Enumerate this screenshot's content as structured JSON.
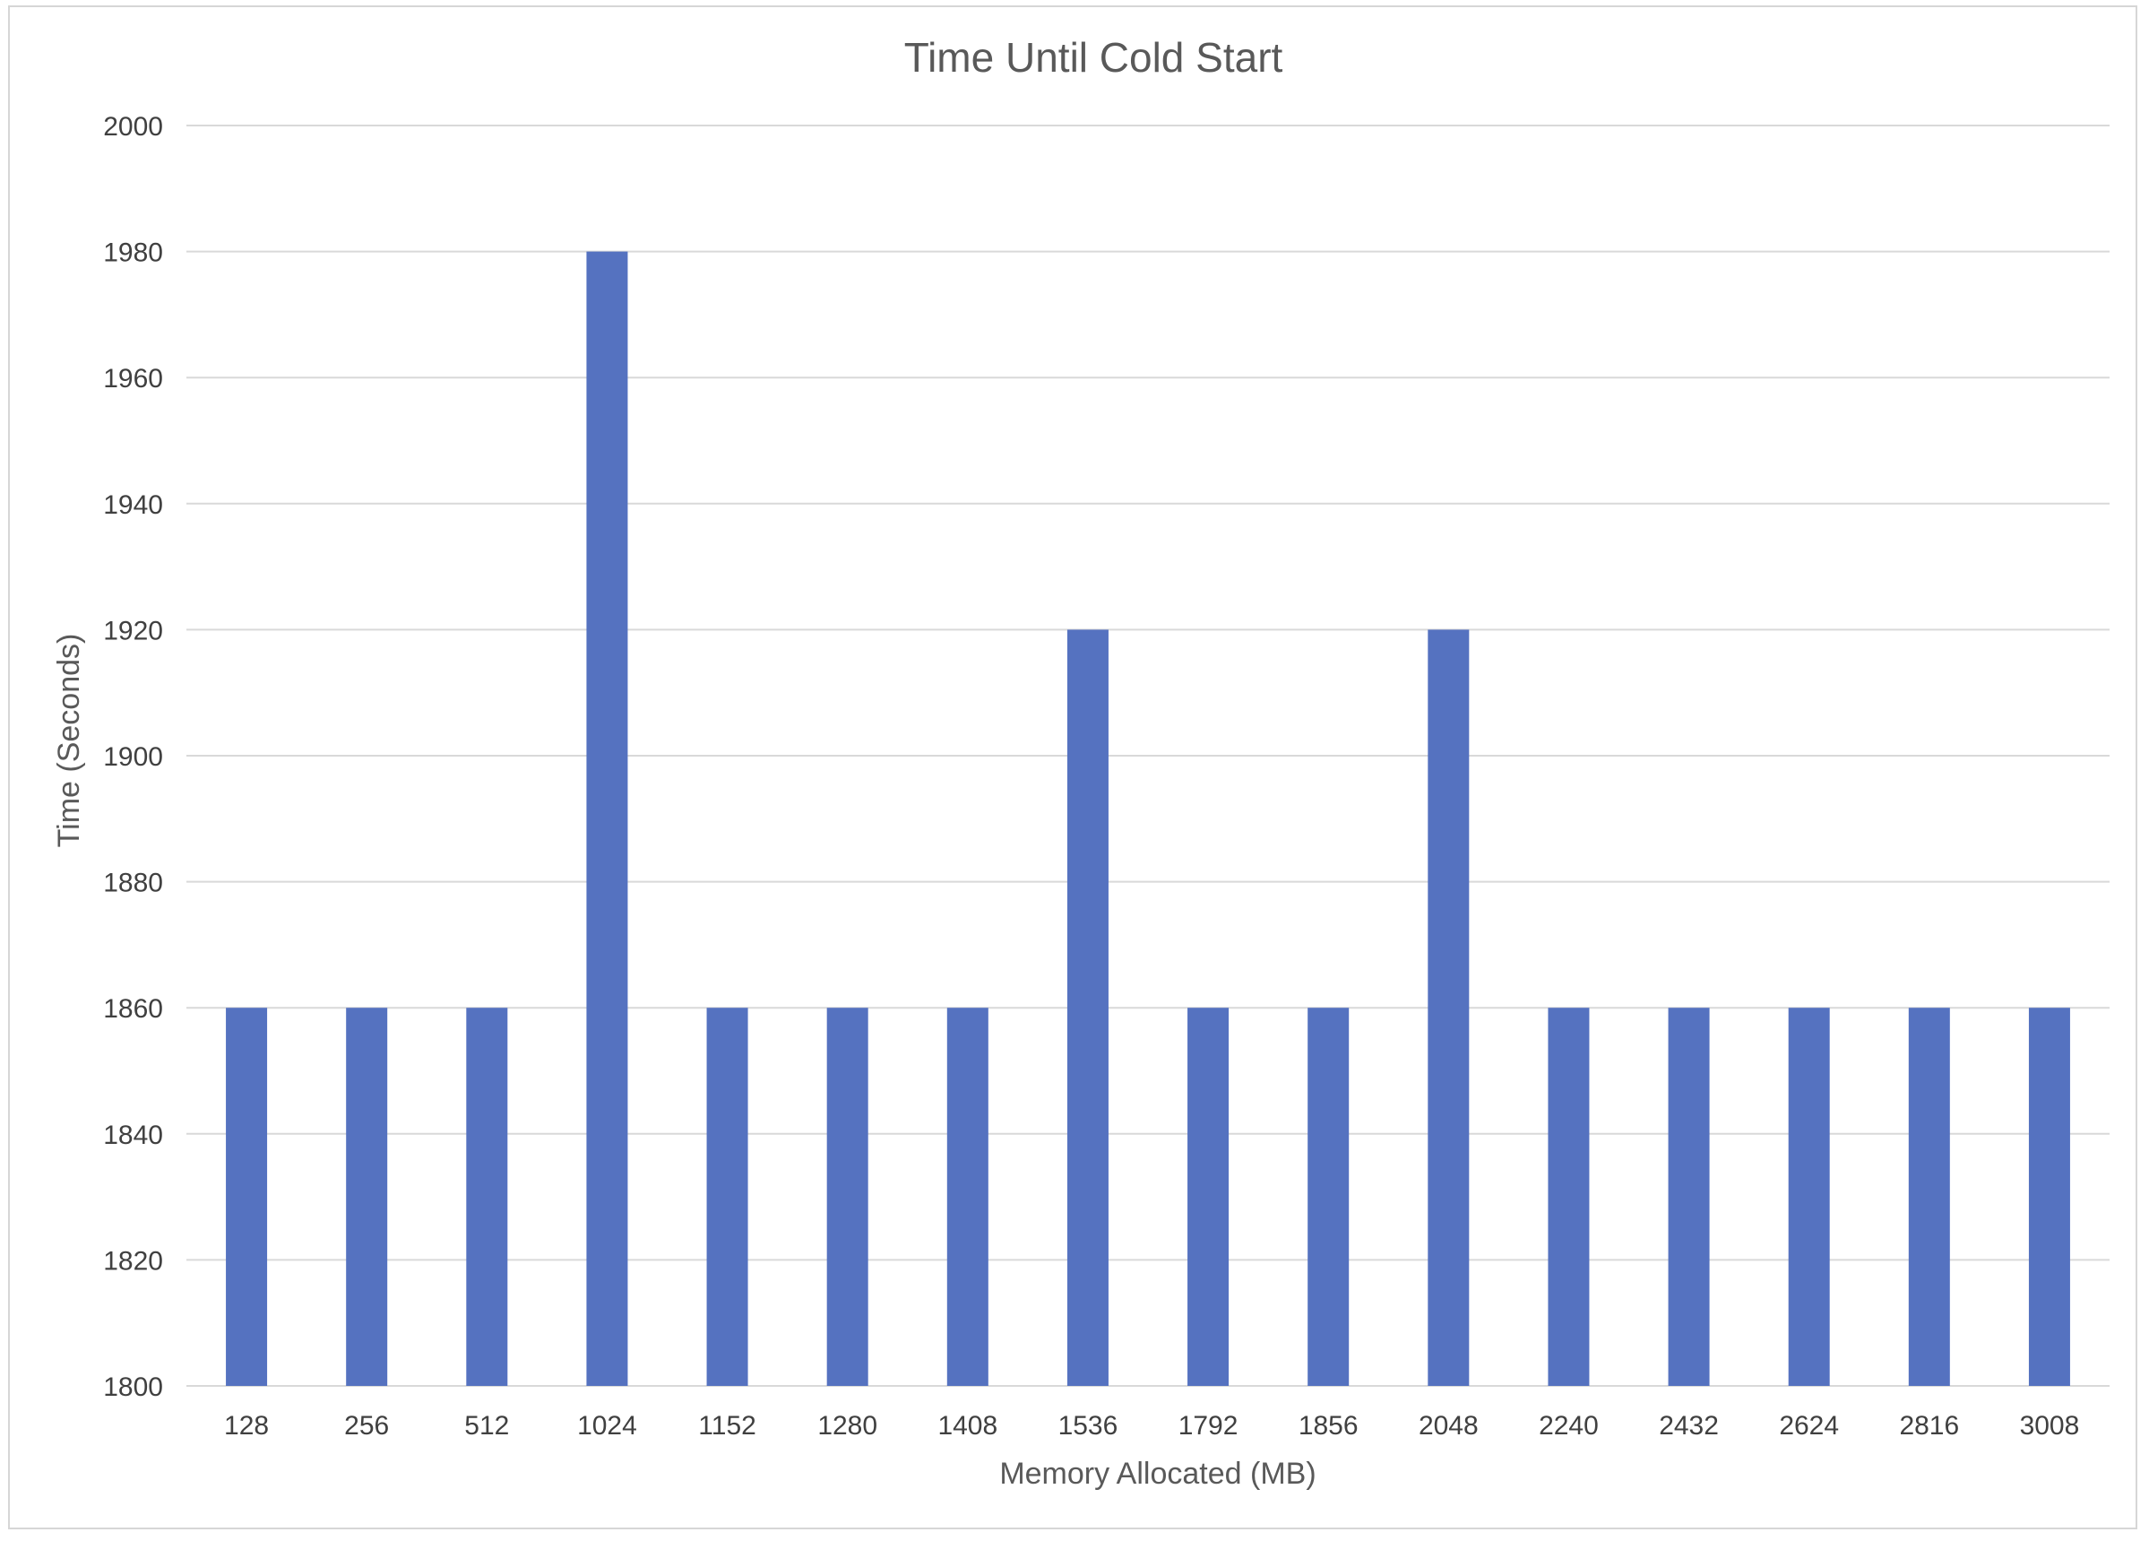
{
  "chart_data": {
    "type": "bar",
    "title": "Time Until Cold Start",
    "xlabel": "Memory Allocated (MB)",
    "ylabel": "Time (Seconds)",
    "categories": [
      "128",
      "256",
      "512",
      "1024",
      "1152",
      "1280",
      "1408",
      "1536",
      "1792",
      "1856",
      "2048",
      "2240",
      "2432",
      "2624",
      "2816",
      "3008"
    ],
    "values": [
      1860,
      1860,
      1860,
      1980,
      1860,
      1860,
      1860,
      1920,
      1860,
      1860,
      1920,
      1860,
      1860,
      1860,
      1860,
      1860
    ],
    "ylim": [
      1800,
      2000
    ],
    "yticks": [
      "1800",
      "1820",
      "1840",
      "1860",
      "1880",
      "1900",
      "1920",
      "1940",
      "1960",
      "1980",
      "2000"
    ],
    "grid": true,
    "legend": "none",
    "bar_color": "#5572c0"
  }
}
